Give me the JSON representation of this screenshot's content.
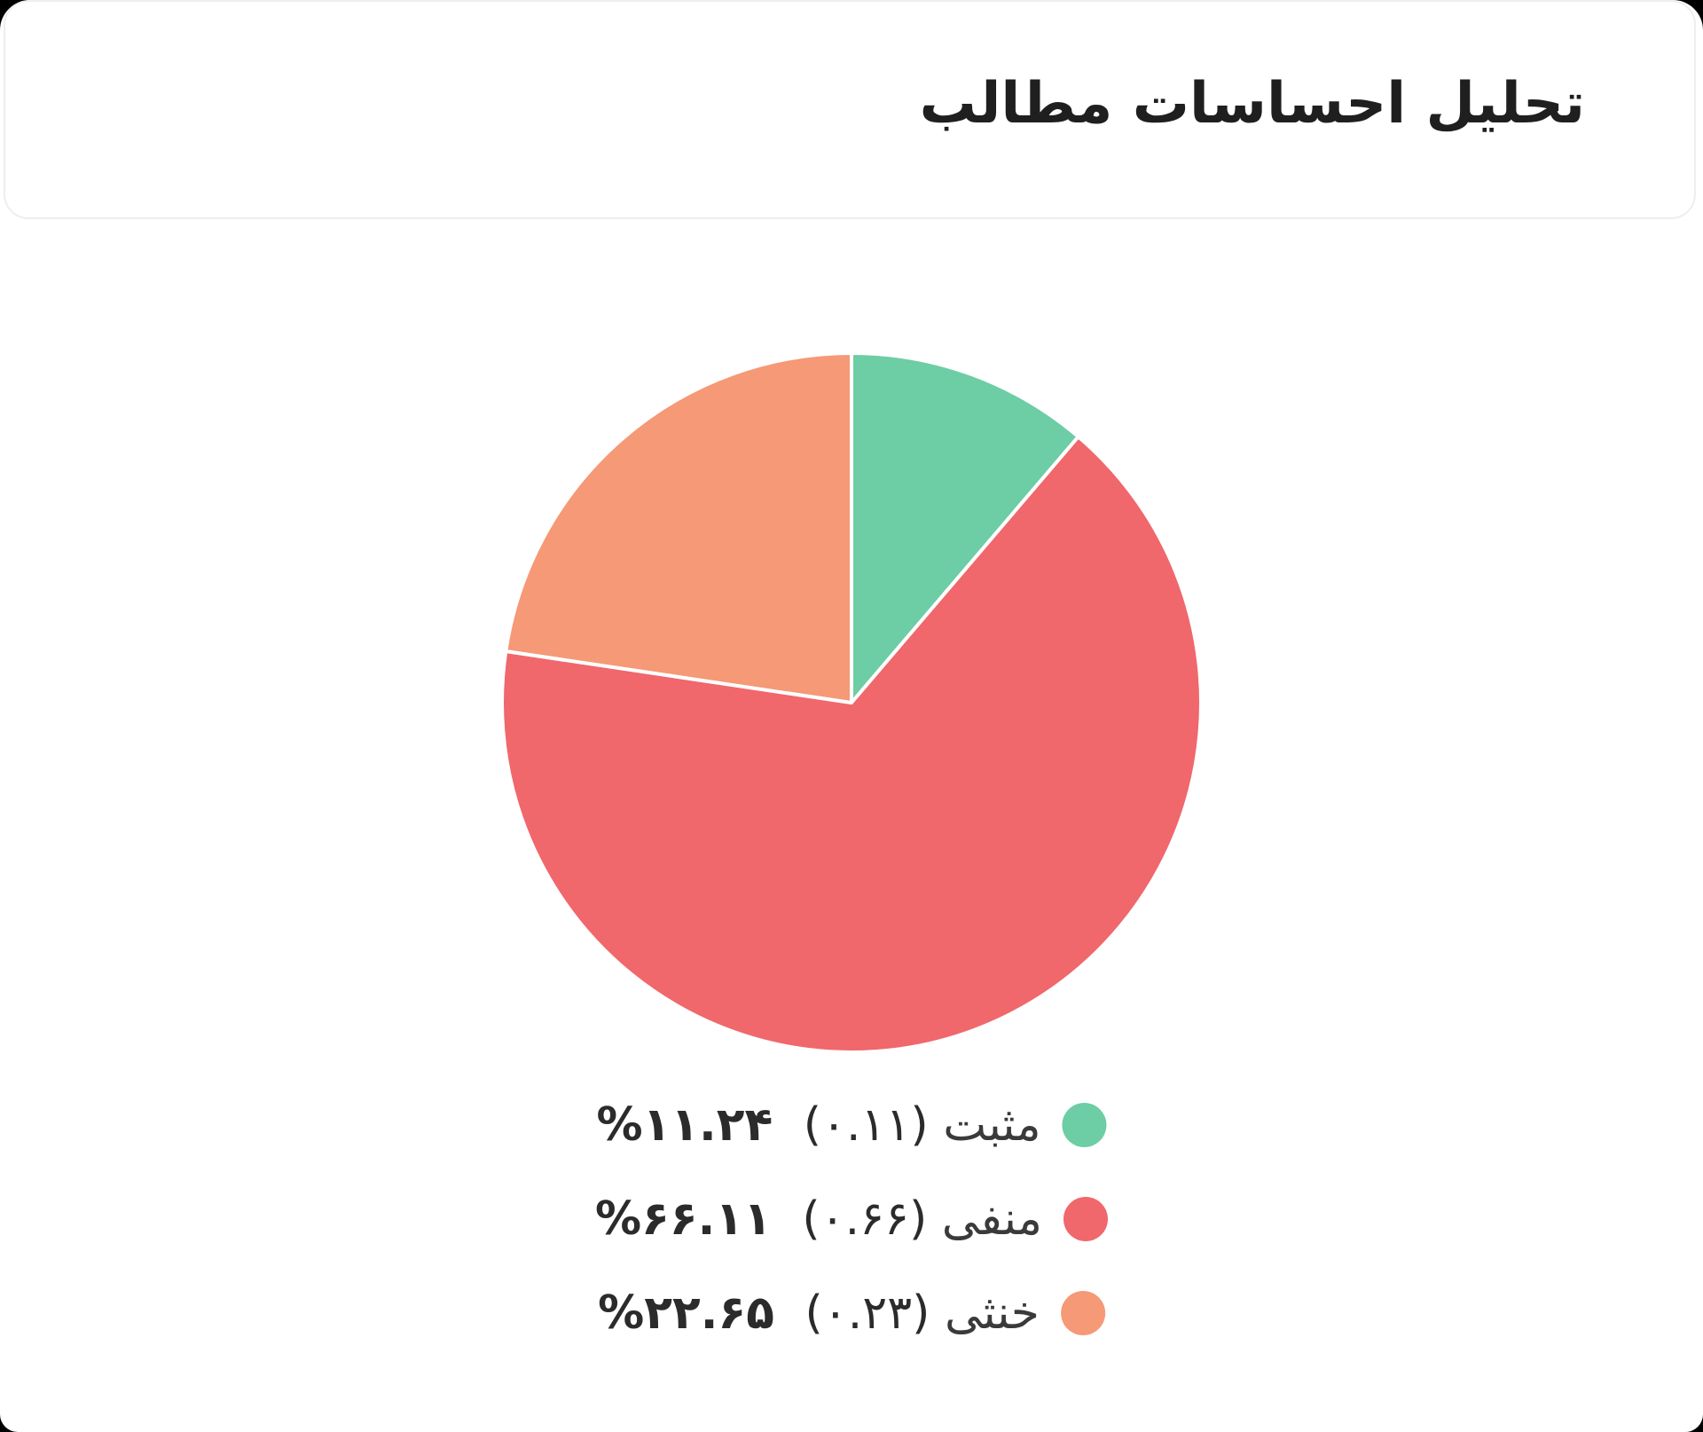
{
  "header": {
    "title": "تحلیل احساسات مطالب"
  },
  "chart_data": {
    "type": "pie",
    "title": "تحلیل احساسات مطالب",
    "start_angle_deg": 0,
    "direction": "clockwise",
    "slices": [
      {
        "label": "مثبت",
        "value": 0.11,
        "percent": 11.24,
        "value_text": "(۰.۱۱)",
        "percent_text": "۱۱.۲۴%",
        "color": "#6dcda5"
      },
      {
        "label": "منفی",
        "value": 0.66,
        "percent": 66.11,
        "value_text": "(۰.۶۶)",
        "percent_text": "۶۶.۱۱%",
        "color": "#f0676c"
      },
      {
        "label": "خنثی",
        "value": 0.23,
        "percent": 22.65,
        "value_text": "(۰.۲۳)",
        "percent_text": "۲۲.۶۵%",
        "color": "#f59976"
      }
    ],
    "legend_position": "bottom"
  }
}
